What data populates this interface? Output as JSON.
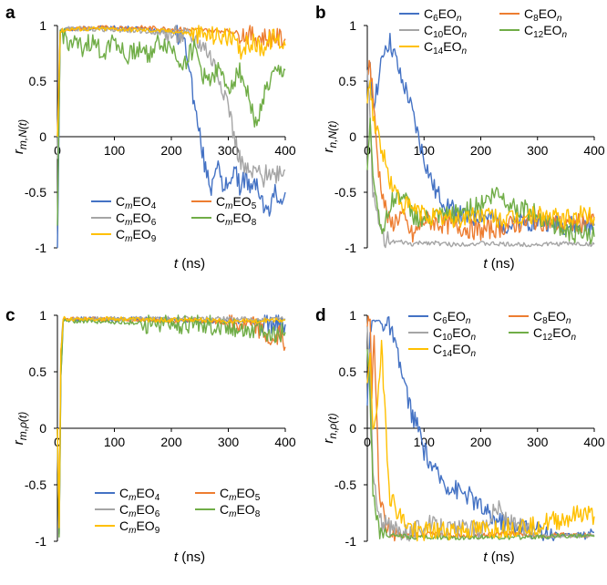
{
  "chart_data": [
    {
      "panel": "a",
      "type": "line",
      "xlabel": {
        "var": "t",
        "unit": " (ns)"
      },
      "ylabel": {
        "base": "r",
        "sub": "m,N(t)",
        "accent": "bar"
      },
      "xlim": [
        0,
        400
      ],
      "ylim": [
        -1,
        1
      ],
      "xticks": [
        "0",
        "100",
        "200",
        "300",
        "400"
      ],
      "yticks": [
        "1",
        "0.5",
        "0",
        "-0.5",
        "-1"
      ],
      "legend_position": "bottom-left",
      "legend": [
        {
          "prefix": "C",
          "sub1": "m",
          "mid": "EO",
          "sub2": "4",
          "color": "#4472C4"
        },
        {
          "prefix": "C",
          "sub1": "m",
          "mid": "EO",
          "sub2": "5",
          "color": "#ED7D31"
        },
        {
          "prefix": "C",
          "sub1": "m",
          "mid": "EO",
          "sub2": "6",
          "color": "#A5A5A5"
        },
        {
          "prefix": "C",
          "sub1": "m",
          "mid": "EO",
          "sub2": "8",
          "color": "#70AD47"
        },
        {
          "prefix": "C",
          "sub1": "m",
          "mid": "EO",
          "sub2": "9",
          "color": "#FFC000"
        }
      ],
      "series": [
        {
          "color": "#4472C4",
          "x": [
            0,
            5,
            20,
            60,
            100,
            150,
            200,
            220,
            230,
            240,
            250,
            260,
            270,
            280,
            290,
            300,
            310,
            320,
            330,
            340,
            350,
            360,
            370,
            380,
            390,
            400
          ],
          "y": [
            -1,
            0.95,
            0.97,
            0.98,
            0.98,
            0.97,
            0.95,
            0.9,
            0.7,
            0.3,
            0.0,
            -0.3,
            -0.45,
            -0.2,
            -0.5,
            -0.4,
            -0.3,
            -0.45,
            -0.35,
            -0.5,
            -0.4,
            -0.6,
            -0.7,
            -0.5,
            -0.55,
            -0.5
          ]
        },
        {
          "color": "#ED7D31",
          "x": [
            0,
            5,
            20,
            60,
            100,
            150,
            200,
            250,
            300,
            350,
            400
          ],
          "y": [
            0,
            0.95,
            0.97,
            0.98,
            0.98,
            0.98,
            0.97,
            0.96,
            0.95,
            0.9,
            0.88
          ]
        },
        {
          "color": "#A5A5A5",
          "x": [
            0,
            5,
            20,
            60,
            100,
            150,
            200,
            240,
            260,
            280,
            300,
            310,
            320,
            330,
            340,
            350,
            360,
            370,
            380,
            390,
            400
          ],
          "y": [
            -0.2,
            0.95,
            0.97,
            0.97,
            0.96,
            0.95,
            0.92,
            0.88,
            0.8,
            0.6,
            0.3,
            0.0,
            -0.2,
            -0.3,
            -0.35,
            -0.3,
            -0.4,
            -0.3,
            -0.35,
            -0.3,
            -0.3
          ]
        },
        {
          "color": "#70AD47",
          "x": [
            0,
            5,
            20,
            40,
            60,
            80,
            100,
            120,
            140,
            160,
            180,
            200,
            220,
            240,
            260,
            280,
            300,
            320,
            340,
            350,
            360,
            380,
            400
          ],
          "y": [
            -0.8,
            0.95,
            0.85,
            0.8,
            0.85,
            0.75,
            0.9,
            0.7,
            0.8,
            0.75,
            0.85,
            0.8,
            0.65,
            0.8,
            0.5,
            0.6,
            0.45,
            0.6,
            0.3,
            0.05,
            0.35,
            0.55,
            0.6
          ]
        },
        {
          "color": "#FFC000",
          "x": [
            0,
            5,
            20,
            60,
            100,
            150,
            200,
            250,
            300,
            320,
            340,
            360,
            380,
            400
          ],
          "y": [
            0,
            0.95,
            0.97,
            0.97,
            0.97,
            0.96,
            0.95,
            0.92,
            0.9,
            0.78,
            0.85,
            0.8,
            0.9,
            0.82
          ]
        }
      ]
    },
    {
      "panel": "b",
      "type": "line",
      "xlabel": {
        "var": "t",
        "unit": " (ns)"
      },
      "ylabel": {
        "base": "r",
        "sub": "n,N(t)",
        "accent": "bar"
      },
      "xlim": [
        0,
        400
      ],
      "ylim": [
        -1,
        1
      ],
      "xticks": [
        "0",
        "100",
        "200",
        "300",
        "400"
      ],
      "yticks": [
        "1",
        "0.5",
        "0",
        "-0.5",
        "-1"
      ],
      "legend_position": "top-right",
      "legend": [
        {
          "prefix": "C",
          "sub1": "6",
          "mid": "EO",
          "sub2": "n",
          "color": "#4472C4"
        },
        {
          "prefix": "C",
          "sub1": "8",
          "mid": "EO",
          "sub2": "n",
          "color": "#ED7D31"
        },
        {
          "prefix": "C",
          "sub1": "10",
          "mid": "EO",
          "sub2": "n",
          "color": "#A5A5A5"
        },
        {
          "prefix": "C",
          "sub1": "12",
          "mid": "EO",
          "sub2": "n",
          "color": "#70AD47"
        },
        {
          "prefix": "C",
          "sub1": "14",
          "mid": "EO",
          "sub2": "n",
          "color": "#FFC000"
        }
      ],
      "series": [
        {
          "color": "#4472C4",
          "x": [
            0,
            5,
            10,
            20,
            30,
            40,
            50,
            60,
            70,
            80,
            90,
            100,
            110,
            120,
            140,
            160,
            180,
            200,
            250,
            300,
            350,
            400
          ],
          "y": [
            0.5,
            0.6,
            0.3,
            0.5,
            0.8,
            0.85,
            0.7,
            0.5,
            0.4,
            0.2,
            0.0,
            -0.2,
            -0.35,
            -0.5,
            -0.6,
            -0.7,
            -0.75,
            -0.7,
            -0.8,
            -0.75,
            -0.8,
            -0.8
          ]
        },
        {
          "color": "#ED7D31",
          "x": [
            0,
            5,
            10,
            15,
            20,
            30,
            40,
            60,
            80,
            100,
            150,
            200,
            250,
            300,
            350,
            400
          ],
          "y": [
            0.6,
            0.65,
            0.4,
            0.0,
            -0.3,
            -0.6,
            -0.8,
            -0.7,
            -0.9,
            -0.75,
            -0.8,
            -0.85,
            -0.8,
            -0.75,
            -0.8,
            -0.75
          ]
        },
        {
          "color": "#A5A5A5",
          "x": [
            0,
            5,
            10,
            20,
            30,
            40,
            60,
            80,
            100,
            150,
            200,
            250,
            300,
            350,
            400
          ],
          "y": [
            0.6,
            0.2,
            -0.5,
            -0.8,
            -0.9,
            -0.95,
            -0.95,
            -0.97,
            -0.95,
            -0.97,
            -0.96,
            -0.97,
            -0.97,
            -0.96,
            -0.97
          ]
        },
        {
          "color": "#70AD47",
          "x": [
            0,
            5,
            10,
            20,
            30,
            40,
            60,
            80,
            100,
            150,
            200,
            230,
            250,
            300,
            350,
            400
          ],
          "y": [
            -0.3,
            0.1,
            -0.3,
            -0.7,
            -0.85,
            -0.6,
            -0.5,
            -0.7,
            -0.75,
            -0.7,
            -0.6,
            -0.5,
            -0.6,
            -0.7,
            -0.85,
            -0.9
          ]
        },
        {
          "color": "#FFC000",
          "x": [
            0,
            5,
            10,
            20,
            30,
            40,
            60,
            80,
            100,
            150,
            200,
            250,
            300,
            350,
            380,
            400
          ],
          "y": [
            0.3,
            0.5,
            0.2,
            0.0,
            -0.2,
            -0.4,
            -0.6,
            -0.65,
            -0.7,
            -0.75,
            -0.7,
            -0.75,
            -0.7,
            -0.75,
            -0.7,
            -0.72
          ]
        }
      ]
    },
    {
      "panel": "c",
      "type": "line",
      "xlabel": {
        "var": "t",
        "unit": " (ns)"
      },
      "ylabel": {
        "base": "r",
        "sub": "m,ρ(t)",
        "accent": "hat"
      },
      "xlim": [
        0,
        400
      ],
      "ylim": [
        -1,
        1
      ],
      "xticks": [
        "0",
        "100",
        "200",
        "300",
        "400"
      ],
      "yticks": [
        "1",
        "0.5",
        "0",
        "-0.5",
        "-1"
      ],
      "legend_position": "bottom-center",
      "legend": [
        {
          "prefix": "C",
          "sub1": "m",
          "mid": "EO",
          "sub2": "4",
          "color": "#4472C4"
        },
        {
          "prefix": "C",
          "sub1": "m",
          "mid": "EO",
          "sub2": "5",
          "color": "#ED7D31"
        },
        {
          "prefix": "C",
          "sub1": "m",
          "mid": "EO",
          "sub2": "6",
          "color": "#A5A5A5"
        },
        {
          "prefix": "C",
          "sub1": "m",
          "mid": "EO",
          "sub2": "8",
          "color": "#70AD47"
        },
        {
          "prefix": "C",
          "sub1": "m",
          "mid": "EO",
          "sub2": "9",
          "color": "#FFC000"
        }
      ],
      "series": [
        {
          "color": "#4472C4",
          "x": [
            0,
            3,
            6,
            10,
            50,
            100,
            150,
            200,
            250,
            300,
            350,
            400
          ],
          "y": [
            0,
            -0.95,
            0.5,
            0.96,
            0.97,
            0.96,
            0.97,
            0.96,
            0.95,
            0.95,
            0.93,
            0.92
          ]
        },
        {
          "color": "#ED7D31",
          "x": [
            0,
            3,
            6,
            10,
            50,
            100,
            150,
            200,
            250,
            300,
            350,
            380,
            390,
            400
          ],
          "y": [
            0,
            -0.9,
            0.6,
            0.96,
            0.97,
            0.96,
            0.96,
            0.95,
            0.95,
            0.93,
            0.9,
            0.75,
            0.85,
            0.72
          ]
        },
        {
          "color": "#A5A5A5",
          "x": [
            0,
            3,
            6,
            10,
            50,
            100,
            150,
            200,
            250,
            300,
            350,
            400
          ],
          "y": [
            0,
            -0.95,
            0.6,
            0.97,
            0.97,
            0.97,
            0.97,
            0.97,
            0.97,
            0.97,
            0.96,
            0.97
          ]
        },
        {
          "color": "#70AD47",
          "x": [
            0,
            3,
            6,
            10,
            50,
            100,
            150,
            200,
            250,
            300,
            350,
            380,
            400
          ],
          "y": [
            0,
            -0.97,
            0.5,
            0.95,
            0.95,
            0.94,
            0.93,
            0.92,
            0.92,
            0.9,
            0.88,
            0.82,
            0.85
          ]
        },
        {
          "color": "#FFC000",
          "x": [
            0,
            3,
            6,
            10,
            50,
            100,
            150,
            200,
            250,
            300,
            350,
            400
          ],
          "y": [
            0,
            -0.9,
            0.6,
            0.97,
            0.97,
            0.97,
            0.96,
            0.96,
            0.96,
            0.95,
            0.95,
            0.96
          ]
        }
      ]
    },
    {
      "panel": "d",
      "type": "line",
      "xlabel": {
        "var": "t",
        "unit": " (ns)"
      },
      "ylabel": {
        "base": "r",
        "sub": "n,ρ(t)",
        "accent": "hat"
      },
      "xlim": [
        0,
        400
      ],
      "ylim": [
        -1,
        1
      ],
      "xticks": [
        "0",
        "100",
        "200",
        "300",
        "400"
      ],
      "yticks": [
        "1",
        "0.5",
        "0",
        "-0.5",
        "-1"
      ],
      "legend_position": "top-right",
      "legend": [
        {
          "prefix": "C",
          "sub1": "6",
          "mid": "EO",
          "sub2": "n",
          "color": "#4472C4"
        },
        {
          "prefix": "C",
          "sub1": "8",
          "mid": "EO",
          "sub2": "n",
          "color": "#ED7D31"
        },
        {
          "prefix": "C",
          "sub1": "10",
          "mid": "EO",
          "sub2": "n",
          "color": "#A5A5A5"
        },
        {
          "prefix": "C",
          "sub1": "12",
          "mid": "EO",
          "sub2": "n",
          "color": "#70AD47"
        },
        {
          "prefix": "C",
          "sub1": "14",
          "mid": "EO",
          "sub2": "n",
          "color": "#FFC000"
        }
      ],
      "series": [
        {
          "color": "#4472C4",
          "x": [
            0,
            5,
            10,
            20,
            30,
            40,
            50,
            60,
            70,
            80,
            90,
            100,
            110,
            120,
            140,
            160,
            180,
            200,
            220,
            250,
            300,
            350,
            400
          ],
          "y": [
            0.2,
            0.9,
            0.95,
            0.95,
            0.92,
            0.9,
            0.7,
            0.5,
            0.3,
            0.1,
            0.0,
            -0.2,
            -0.3,
            -0.4,
            -0.5,
            -0.55,
            -0.6,
            -0.7,
            -0.8,
            -0.85,
            -0.9,
            -0.95,
            -0.92
          ]
        },
        {
          "color": "#ED7D31",
          "x": [
            0,
            5,
            8,
            12,
            16,
            20,
            30,
            40,
            60,
            80,
            100,
            150,
            200,
            250,
            300,
            350,
            400
          ],
          "y": [
            0.9,
            0.95,
            0.3,
            0.9,
            0.2,
            -0.5,
            -0.8,
            -0.9,
            -0.95,
            -0.95,
            -0.93,
            -0.95,
            -0.95,
            -0.93,
            -0.95,
            -0.94,
            -0.95
          ]
        },
        {
          "color": "#A5A5A5",
          "x": [
            0,
            5,
            10,
            20,
            40,
            60,
            80,
            100,
            150,
            200,
            230,
            250,
            280,
            300,
            350,
            400
          ],
          "y": [
            0.9,
            0.5,
            -0.4,
            -0.8,
            -0.9,
            -0.9,
            -0.92,
            -0.85,
            -0.9,
            -0.9,
            -0.7,
            -0.85,
            -0.9,
            -0.95,
            -0.95,
            -0.95
          ]
        },
        {
          "color": "#70AD47",
          "x": [
            0,
            5,
            10,
            20,
            40,
            60,
            80,
            100,
            150,
            200,
            250,
            300,
            350,
            400
          ],
          "y": [
            0.7,
            0.3,
            -0.6,
            -0.9,
            -0.95,
            -0.95,
            -0.97,
            -0.96,
            -0.97,
            -0.96,
            -0.97,
            -0.96,
            -0.95,
            -0.96
          ]
        },
        {
          "color": "#FFC000",
          "x": [
            0,
            5,
            10,
            20,
            25,
            30,
            35,
            40,
            50,
            60,
            80,
            100,
            150,
            200,
            250,
            300,
            350,
            380,
            400
          ],
          "y": [
            0.4,
            0.6,
            0.0,
            0.3,
            0.7,
            0.3,
            -0.2,
            -0.6,
            -0.7,
            -0.8,
            -0.9,
            -0.92,
            -0.9,
            -0.9,
            -0.88,
            -0.85,
            -0.8,
            -0.75,
            -0.78
          ]
        }
      ]
    }
  ]
}
